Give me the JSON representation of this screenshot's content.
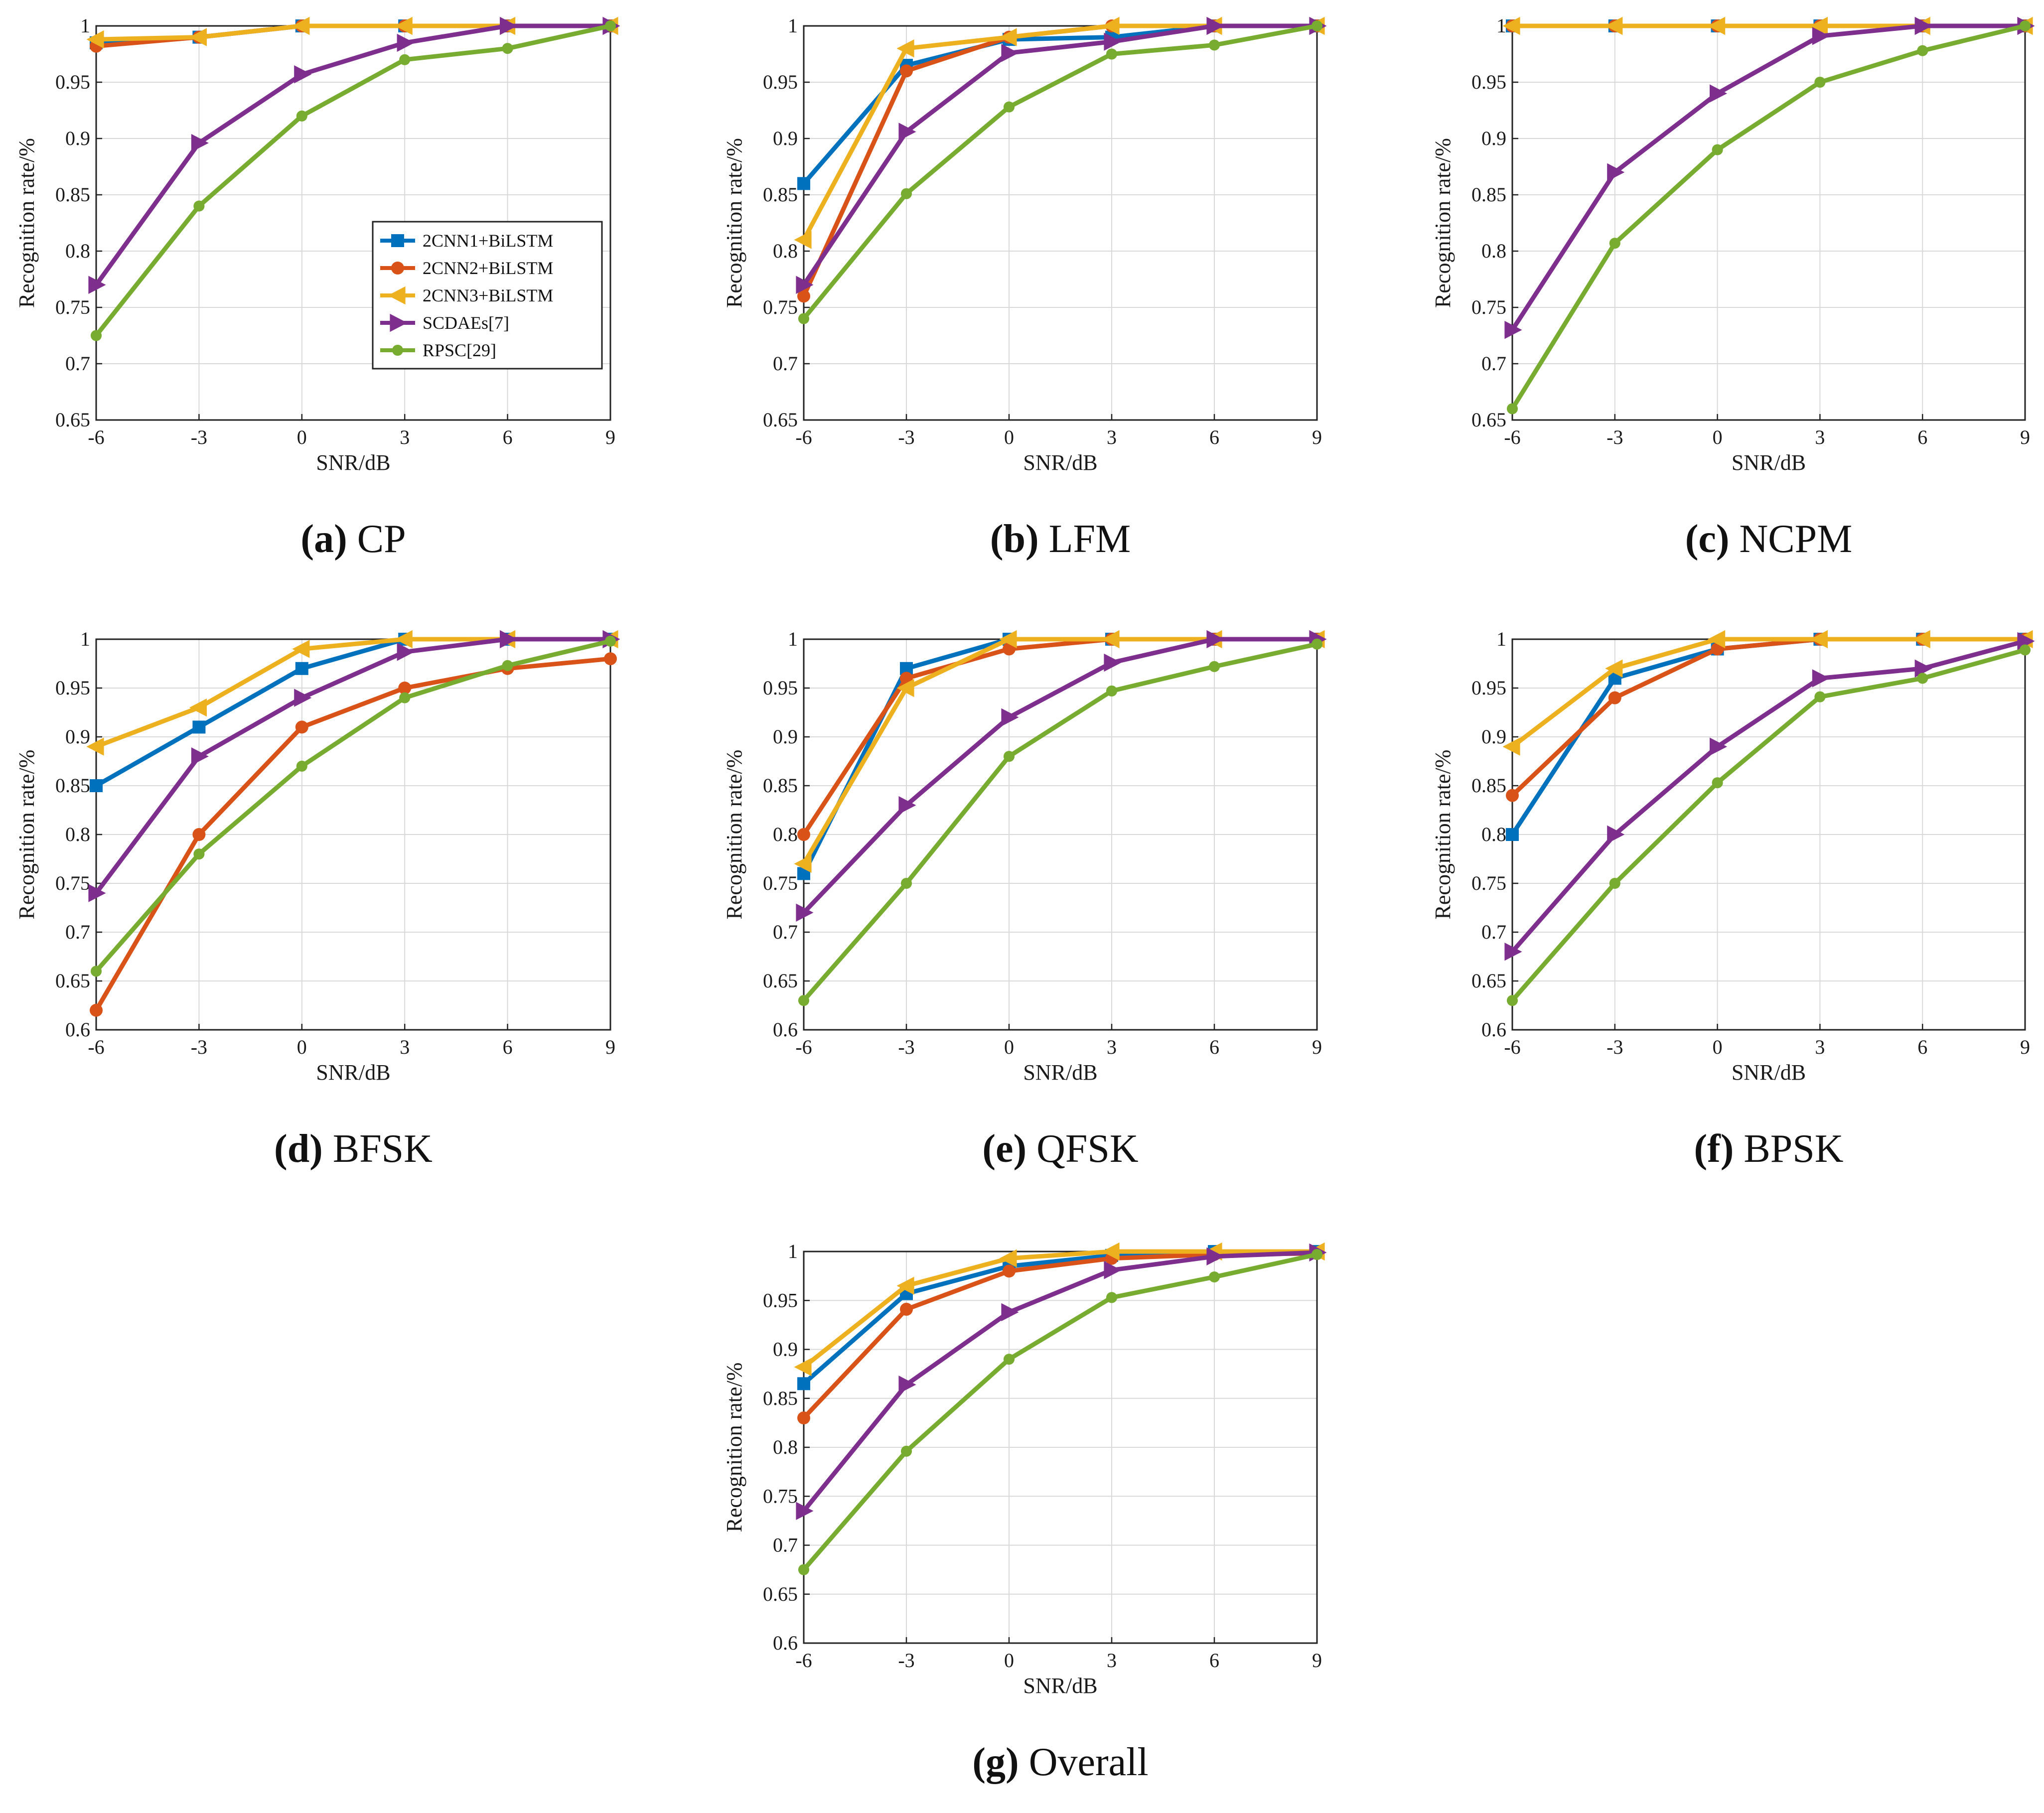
{
  "figure": {
    "legend_series": [
      "2CNN1+BiLSTM",
      "2CNN2+BiLSTM",
      "2CNN3+BiLSTM",
      "SCDAEs[7]",
      "RPSC[29]"
    ]
  },
  "series_styles": [
    {
      "name": "2CNN1+BiLSTM",
      "color": "#0072BD",
      "marker": "square"
    },
    {
      "name": "2CNN2+BiLSTM",
      "color": "#D95319",
      "marker": "circle"
    },
    {
      "name": "2CNN3+BiLSTM",
      "color": "#EDB120",
      "marker": "triangle-left"
    },
    {
      "name": "SCDAEs[7]",
      "color": "#7E2F8E",
      "marker": "triangle-right"
    },
    {
      "name": "RPSC[29]",
      "color": "#77AC30",
      "marker": "dot"
    }
  ],
  "chart_data": [
    {
      "type": "line",
      "panel": "a",
      "caption_letter": "(a)",
      "caption_text": "CP",
      "title": "(a) CP",
      "xlabel": "SNR/dB",
      "ylabel": "Recognition rate/%",
      "x": [
        -6,
        -3,
        0,
        3,
        6,
        9
      ],
      "xticks": [
        "-6",
        "-3",
        "0",
        "3",
        "6",
        "9"
      ],
      "ylim": [
        0.65,
        1.0
      ],
      "yticks": [
        "0.65",
        "0.7",
        "0.75",
        "0.8",
        "0.85",
        "0.9",
        "0.95",
        "1"
      ],
      "legend": true,
      "series": [
        {
          "name": "2CNN1+BiLSTM",
          "values": [
            0.985,
            0.99,
            1.0,
            1.0,
            1.0,
            1.0
          ]
        },
        {
          "name": "2CNN2+BiLSTM",
          "values": [
            0.982,
            0.99,
            1.0,
            1.0,
            1.0,
            1.0
          ]
        },
        {
          "name": "2CNN3+BiLSTM",
          "values": [
            0.988,
            0.99,
            1.0,
            1.0,
            1.0,
            1.0
          ]
        },
        {
          "name": "SCDAEs[7]",
          "values": [
            0.77,
            0.896,
            0.957,
            0.985,
            1.0,
            1.0
          ]
        },
        {
          "name": "RPSC[29]",
          "values": [
            0.725,
            0.84,
            0.92,
            0.97,
            0.98,
            1.0
          ]
        }
      ]
    },
    {
      "type": "line",
      "panel": "b",
      "caption_letter": "(b)",
      "caption_text": "LFM",
      "title": "(b) LFM",
      "xlabel": "SNR/dB",
      "ylabel": "Recognition rate/%",
      "x": [
        -6,
        -3,
        0,
        3,
        6,
        9
      ],
      "xticks": [
        "-6",
        "-3",
        "0",
        "3",
        "6",
        "9"
      ],
      "ylim": [
        0.65,
        1.0
      ],
      "yticks": [
        "0.65",
        "0.7",
        "0.75",
        "0.8",
        "0.85",
        "0.9",
        "0.95",
        "1"
      ],
      "legend": false,
      "series": [
        {
          "name": "2CNN1+BiLSTM",
          "values": [
            0.86,
            0.965,
            0.988,
            0.99,
            1.0,
            1.0
          ]
        },
        {
          "name": "2CNN2+BiLSTM",
          "values": [
            0.76,
            0.96,
            0.99,
            1.0,
            1.0,
            1.0
          ]
        },
        {
          "name": "2CNN3+BiLSTM",
          "values": [
            0.81,
            0.98,
            0.99,
            1.0,
            1.0,
            1.0
          ]
        },
        {
          "name": "SCDAEs[7]",
          "values": [
            0.77,
            0.906,
            0.976,
            0.986,
            1.0,
            1.0
          ]
        },
        {
          "name": "RPSC[29]",
          "values": [
            0.74,
            0.851,
            0.928,
            0.975,
            0.983,
            1.0
          ]
        }
      ]
    },
    {
      "type": "line",
      "panel": "c",
      "caption_letter": "(c)",
      "caption_text": "NCPM",
      "title": "(c) NCPM",
      "xlabel": "SNR/dB",
      "ylabel": "Recognition rate/%",
      "x": [
        -6,
        -3,
        0,
        3,
        6,
        9
      ],
      "xticks": [
        "-6",
        "-3",
        "0",
        "3",
        "6",
        "9"
      ],
      "ylim": [
        0.65,
        1.0
      ],
      "yticks": [
        "0.65",
        "0.7",
        "0.75",
        "0.8",
        "0.85",
        "0.9",
        "0.95",
        "1"
      ],
      "legend": false,
      "series": [
        {
          "name": "2CNN1+BiLSTM",
          "values": [
            1.0,
            1.0,
            1.0,
            1.0,
            1.0,
            1.0
          ]
        },
        {
          "name": "2CNN2+BiLSTM",
          "values": [
            1.0,
            1.0,
            1.0,
            1.0,
            1.0,
            1.0
          ]
        },
        {
          "name": "2CNN3+BiLSTM",
          "values": [
            1.0,
            1.0,
            1.0,
            1.0,
            1.0,
            1.0
          ]
        },
        {
          "name": "SCDAEs[7]",
          "values": [
            0.73,
            0.87,
            0.94,
            0.991,
            1.0,
            1.0
          ]
        },
        {
          "name": "RPSC[29]",
          "values": [
            0.66,
            0.807,
            0.89,
            0.95,
            0.978,
            1.0
          ]
        }
      ]
    },
    {
      "type": "line",
      "panel": "d",
      "caption_letter": "(d)",
      "caption_text": "BFSK",
      "title": "(d) BFSK",
      "xlabel": "SNR/dB",
      "ylabel": "Recognition rate/%",
      "x": [
        -6,
        -3,
        0,
        3,
        6,
        9
      ],
      "xticks": [
        "-6",
        "-3",
        "0",
        "3",
        "6",
        "9"
      ],
      "ylim": [
        0.6,
        1.0
      ],
      "yticks": [
        "0.6",
        "0.65",
        "0.7",
        "0.75",
        "0.8",
        "0.85",
        "0.9",
        "0.95",
        "1"
      ],
      "legend": false,
      "series": [
        {
          "name": "2CNN1+BiLSTM",
          "values": [
            0.85,
            0.91,
            0.97,
            1.0,
            1.0,
            1.0
          ]
        },
        {
          "name": "2CNN2+BiLSTM",
          "values": [
            0.62,
            0.8,
            0.91,
            0.95,
            0.97,
            0.98
          ]
        },
        {
          "name": "2CNN3+BiLSTM",
          "values": [
            0.89,
            0.93,
            0.99,
            1.0,
            1.0,
            1.0
          ]
        },
        {
          "name": "SCDAEs[7]",
          "values": [
            0.74,
            0.88,
            0.94,
            0.987,
            1.0,
            1.0
          ]
        },
        {
          "name": "RPSC[29]",
          "values": [
            0.66,
            0.78,
            0.87,
            0.94,
            0.973,
            0.998
          ]
        }
      ]
    },
    {
      "type": "line",
      "panel": "e",
      "caption_letter": "(e)",
      "caption_text": "QFSK",
      "title": "(e) QFSK",
      "xlabel": "SNR/dB",
      "ylabel": "Recognition rate/%",
      "x": [
        -6,
        -3,
        0,
        3,
        6,
        9
      ],
      "xticks": [
        "-6",
        "-3",
        "0",
        "3",
        "6",
        "9"
      ],
      "ylim": [
        0.6,
        1.0
      ],
      "yticks": [
        "0.6",
        "0.65",
        "0.7",
        "0.75",
        "0.8",
        "0.85",
        "0.9",
        "0.95",
        "1"
      ],
      "legend": false,
      "series": [
        {
          "name": "2CNN1+BiLSTM",
          "values": [
            0.76,
            0.97,
            1.0,
            1.0,
            1.0,
            1.0
          ]
        },
        {
          "name": "2CNN2+BiLSTM",
          "values": [
            0.8,
            0.96,
            0.99,
            1.0,
            1.0,
            1.0
          ]
        },
        {
          "name": "2CNN3+BiLSTM",
          "values": [
            0.77,
            0.95,
            1.0,
            1.0,
            1.0,
            1.0
          ]
        },
        {
          "name": "SCDAEs[7]",
          "values": [
            0.72,
            0.83,
            0.92,
            0.976,
            1.0,
            1.0
          ]
        },
        {
          "name": "RPSC[29]",
          "values": [
            0.63,
            0.75,
            0.88,
            0.947,
            0.972,
            0.995
          ]
        }
      ]
    },
    {
      "type": "line",
      "panel": "f",
      "caption_letter": "(f)",
      "caption_text": "BPSK",
      "title": "(f) BPSK",
      "xlabel": "SNR/dB",
      "ylabel": "Recognition rate/%",
      "x": [
        -6,
        -3,
        0,
        3,
        6,
        9
      ],
      "xticks": [
        "-6",
        "-3",
        "0",
        "3",
        "6",
        "9"
      ],
      "ylim": [
        0.6,
        1.0
      ],
      "yticks": [
        "0.6",
        "0.65",
        "0.7",
        "0.75",
        "0.8",
        "0.85",
        "0.9",
        "0.95",
        "1"
      ],
      "legend": false,
      "series": [
        {
          "name": "2CNN1+BiLSTM",
          "values": [
            0.8,
            0.96,
            0.99,
            1.0,
            1.0,
            1.0
          ]
        },
        {
          "name": "2CNN2+BiLSTM",
          "values": [
            0.84,
            0.94,
            0.99,
            1.0,
            1.0,
            1.0
          ]
        },
        {
          "name": "2CNN3+BiLSTM",
          "values": [
            0.89,
            0.97,
            1.0,
            1.0,
            1.0,
            1.0
          ]
        },
        {
          "name": "SCDAEs[7]",
          "values": [
            0.68,
            0.8,
            0.89,
            0.96,
            0.97,
            0.998
          ]
        },
        {
          "name": "RPSC[29]",
          "values": [
            0.63,
            0.75,
            0.853,
            0.941,
            0.96,
            0.989
          ]
        }
      ]
    },
    {
      "type": "line",
      "panel": "g",
      "caption_letter": "(g)",
      "caption_text": "Overall",
      "title": "(g) Overall",
      "xlabel": "SNR/dB",
      "ylabel": "Recognition rate/%",
      "x": [
        -6,
        -3,
        0,
        3,
        6,
        9
      ],
      "xticks": [
        "-6",
        "-3",
        "0",
        "3",
        "6",
        "9"
      ],
      "ylim": [
        0.6,
        1.0
      ],
      "yticks": [
        "0.6",
        "0.65",
        "0.7",
        "0.75",
        "0.8",
        "0.85",
        "0.9",
        "0.95",
        "1"
      ],
      "legend": false,
      "series": [
        {
          "name": "2CNN1+BiLSTM",
          "values": [
            0.865,
            0.957,
            0.985,
            0.996,
            1.0,
            1.0
          ]
        },
        {
          "name": "2CNN2+BiLSTM",
          "values": [
            0.83,
            0.941,
            0.98,
            0.993,
            0.997,
            0.998
          ]
        },
        {
          "name": "2CNN3+BiLSTM",
          "values": [
            0.882,
            0.965,
            0.993,
            1.0,
            1.0,
            1.0
          ]
        },
        {
          "name": "SCDAEs[7]",
          "values": [
            0.735,
            0.864,
            0.938,
            0.981,
            0.995,
            0.999
          ]
        },
        {
          "name": "RPSC[29]",
          "values": [
            0.675,
            0.796,
            0.89,
            0.953,
            0.974,
            0.997
          ]
        }
      ]
    }
  ]
}
